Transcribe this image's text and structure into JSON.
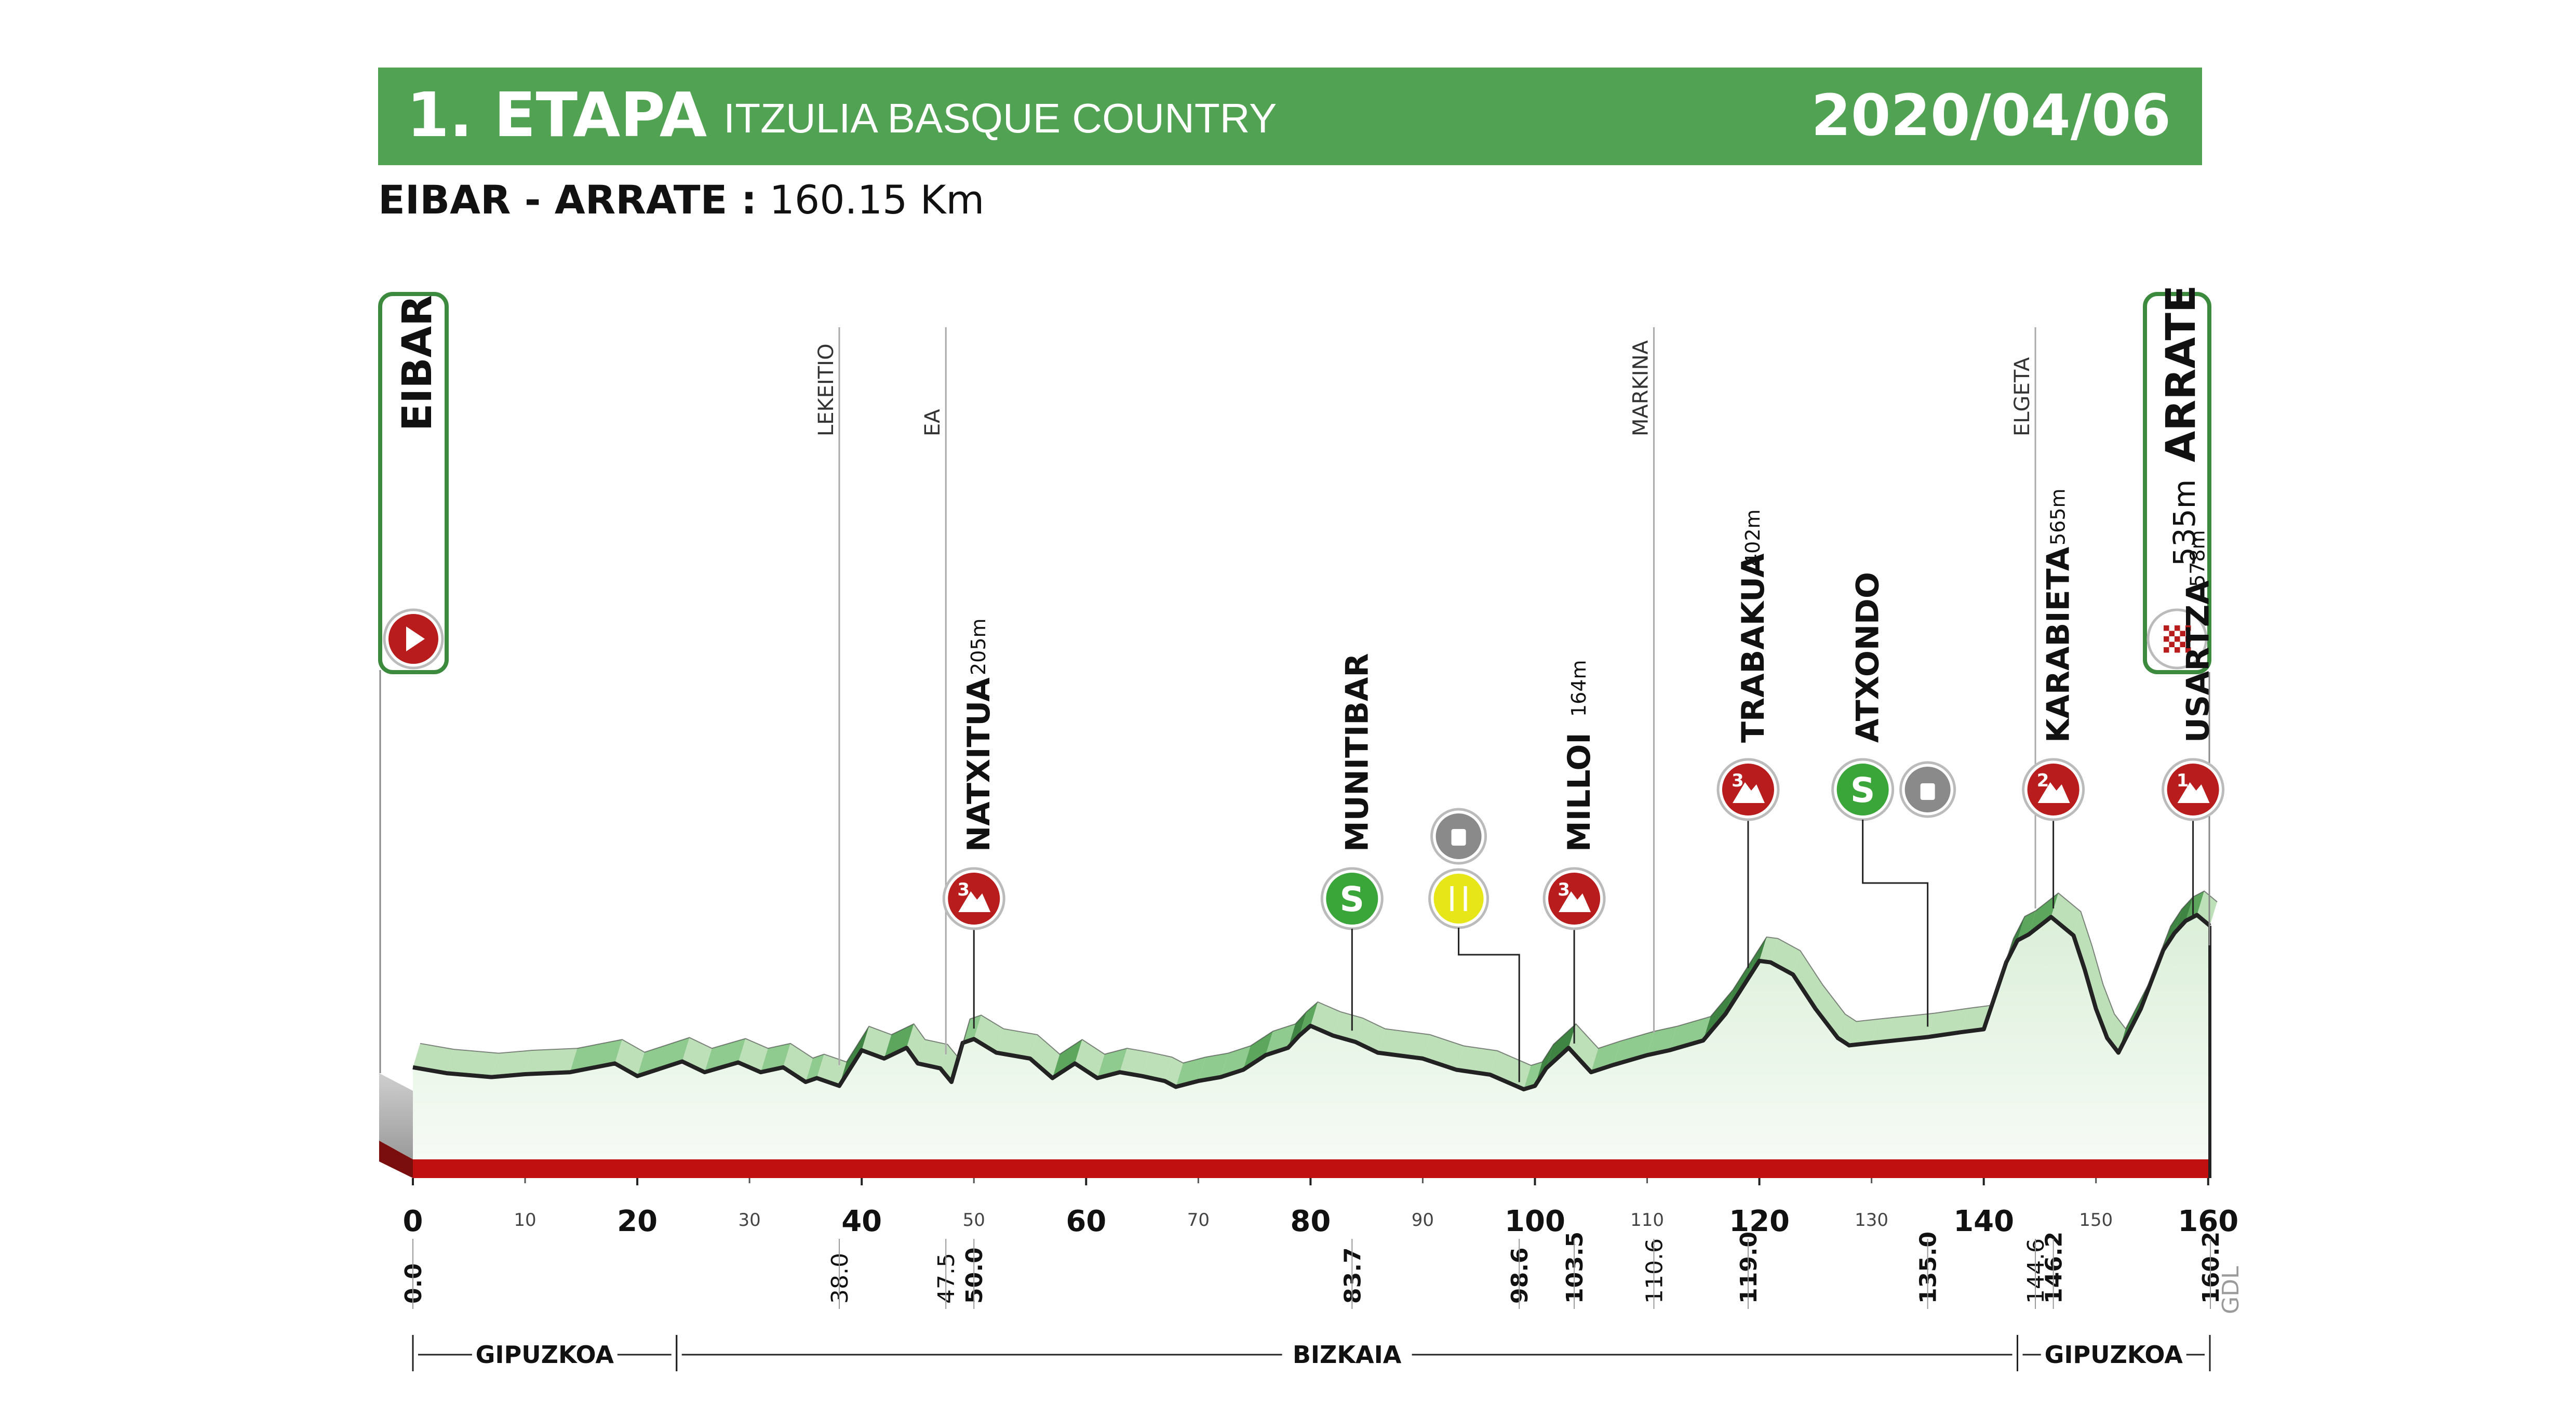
{
  "header": {
    "stage": "1. ETAPA",
    "race": "ITZULIA BASQUE COUNTRY",
    "date": "2020/04/06"
  },
  "route": {
    "name": "EIBAR - ARRATE :",
    "distance": "160.15 Km"
  },
  "colors": {
    "header_green": "#52a254",
    "climb_dark": "#3c8a3e",
    "climb_light": "#a8d7a5",
    "road_red": "#c01010",
    "kom_red": "#b81c1c",
    "sprint_green": "#3aa63a",
    "feed_yellow": "#e6e619",
    "waste_gray": "#8a8a8a"
  },
  "chart_data": {
    "type": "area",
    "title": "1. ETAPA",
    "x_unit": "km",
    "xlim": [
      0,
      160.15
    ],
    "ticks_major": [
      0,
      20,
      40,
      60,
      80,
      100,
      120,
      140,
      160
    ],
    "ticks_minor": [
      10,
      30,
      50,
      70,
      90,
      110,
      130,
      150
    ],
    "ticks_major_labels": [
      "0",
      "20",
      "40",
      "60",
      "80",
      "100",
      "120",
      "140",
      "160"
    ],
    "ticks_minor_labels": [
      "10",
      "30",
      "50",
      "70",
      "90",
      "110",
      "130",
      "150"
    ],
    "profile": {
      "x": [
        0,
        3,
        7,
        10,
        14,
        18,
        20,
        24,
        26,
        29,
        31,
        33,
        35,
        36,
        38,
        40,
        42,
        44,
        45,
        47,
        48,
        49,
        50,
        52,
        55,
        57,
        59,
        61,
        63,
        65,
        67,
        68,
        70,
        72,
        74,
        76,
        78,
        79,
        80,
        82,
        84,
        86,
        90,
        93,
        96,
        98,
        99,
        100,
        101,
        103,
        105,
        107,
        110,
        112,
        115,
        117,
        119,
        120,
        121,
        123,
        125,
        127,
        128,
        130,
        135,
        138,
        140,
        142,
        143,
        144,
        146,
        148,
        149,
        150,
        151,
        152,
        154,
        156,
        157,
        158,
        159,
        160.15
      ],
      "elevation": [
        180,
        168,
        160,
        166,
        170,
        188,
        162,
        192,
        170,
        190,
        170,
        180,
        150,
        158,
        142,
        215,
        198,
        220,
        188,
        178,
        150,
        230,
        238,
        210,
        198,
        158,
        188,
        158,
        170,
        162,
        152,
        140,
        152,
        160,
        175,
        205,
        220,
        245,
        265,
        245,
        232,
        210,
        198,
        175,
        165,
        145,
        135,
        142,
        178,
        220,
        170,
        185,
        205,
        215,
        235,
        290,
        362,
        398,
        395,
        370,
        300,
        240,
        225,
        230,
        242,
        252,
        258,
        395,
        440,
        452,
        488,
        450,
        380,
        300,
        240,
        210,
        300,
        420,
        455,
        480,
        492,
        470
      ]
    },
    "places": [
      {
        "name": "LEKEITIO",
        "km": "38.0"
      },
      {
        "name": "EA",
        "km": "47.5"
      },
      {
        "name": "MARKINA",
        "km": "110.6"
      },
      {
        "name": "ELGETA",
        "km": "144.6"
      }
    ],
    "climbs": [
      {
        "name": "NATXITUA",
        "alt": "205m",
        "cat": "3",
        "km": "50.0"
      },
      {
        "name": "MILLOI",
        "alt": "164m",
        "cat": "3",
        "km": "103.5"
      },
      {
        "name": "TRABAKUA",
        "alt": "402m",
        "cat": "3",
        "km": "119.0"
      },
      {
        "name": "KARABIETA",
        "alt": "565m",
        "cat": "2",
        "km": "146.2"
      },
      {
        "name": "USARTZA",
        "alt": "578m",
        "cat": "1",
        "km": "160.2"
      }
    ],
    "sprints": [
      {
        "name": "MUNITIBAR",
        "km": "83.7"
      },
      {
        "name": "ATXONDO",
        "km": "135.0"
      }
    ],
    "feed_zones": [
      {
        "km": "98.6"
      }
    ],
    "start": {
      "name": "EIBAR",
      "km": "0.0"
    },
    "finish": {
      "name": "ARRATE",
      "alt": "535m"
    },
    "regions": [
      {
        "name": "GIPUZKOA",
        "from": 0,
        "to": 23.5
      },
      {
        "name": "BIZKAIA",
        "from": 23.5,
        "to": 143
      },
      {
        "name": "GIPUZKOA",
        "from": 143,
        "to": 160.15
      }
    ],
    "credit": "GDL"
  }
}
